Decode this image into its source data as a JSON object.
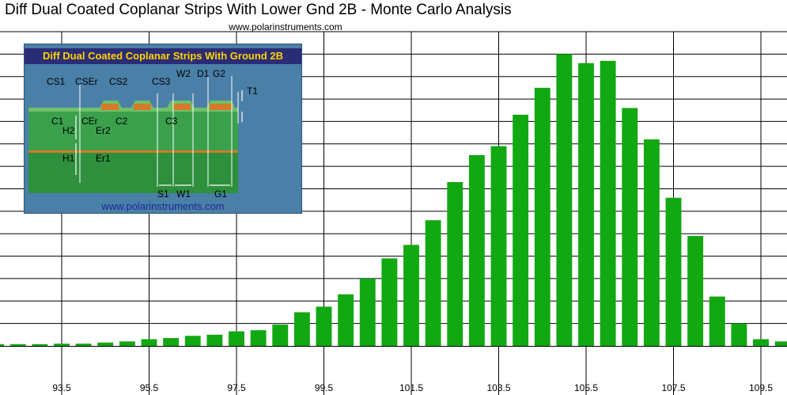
{
  "title": "Diff Dual Coated Coplanar Strips With Lower Gnd 2B - Monte Carlo Analysis",
  "subtitle": "www.polarinstruments.com",
  "colors": {
    "bar": "#12a812",
    "grid": "#000000",
    "inset_bg": "#4a7fa7",
    "inset_title_bg": "#2b2c76",
    "inset_title_text": "#ffd400"
  },
  "chart_data": {
    "type": "bar",
    "x_tick_labels": [
      "93.5",
      "95.5",
      "97.5",
      "99.5",
      "101.5",
      "103.5",
      "105.5",
      "107.5",
      "109.5"
    ],
    "x_ticks": [
      93.5,
      95.5,
      97.5,
      99.5,
      101.5,
      103.5,
      105.5,
      107.5,
      109.5
    ],
    "bin_width": 0.5,
    "x": [
      91.5,
      92.0,
      92.5,
      93.0,
      93.5,
      94.0,
      94.5,
      95.0,
      95.5,
      96.0,
      96.5,
      97.0,
      97.5,
      98.0,
      98.5,
      99.0,
      99.5,
      100.0,
      100.5,
      101.0,
      101.5,
      102.0,
      102.5,
      103.0,
      103.5,
      104.0,
      104.5,
      105.0,
      105.5,
      106.0,
      106.5,
      107.0,
      107.5,
      108.0,
      108.5,
      109.0,
      109.5,
      110.0
    ],
    "values": [
      0.08,
      0.08,
      0.08,
      0.08,
      0.1,
      0.1,
      0.15,
      0.2,
      0.3,
      0.35,
      0.45,
      0.5,
      0.65,
      0.7,
      0.95,
      1.5,
      1.75,
      2.3,
      3.0,
      3.9,
      4.5,
      5.6,
      7.3,
      8.5,
      8.9,
      10.3,
      11.5,
      13.0,
      12.6,
      12.7,
      10.6,
      9.2,
      6.6,
      4.9,
      2.2,
      1.0,
      0.3,
      0.2
    ],
    "ylim": [
      0,
      14
    ],
    "grid": true,
    "title": "Diff Dual Coated Coplanar Strips With Lower Gnd 2B - Monte Carlo Analysis",
    "xlabel": "",
    "ylabel": ""
  },
  "inset": {
    "title": "Diff Dual Coated Coplanar Strips With Ground 2B",
    "url": "www.polarinstruments.com",
    "labels": [
      "CS1",
      "CSEr",
      "CS2",
      "CS3",
      "W2",
      "D1",
      "G2",
      "T1",
      "C1",
      "H2",
      "CEr",
      "Er2",
      "C2",
      "C3",
      "H1",
      "Er1",
      "S1",
      "W1",
      "G1"
    ]
  }
}
